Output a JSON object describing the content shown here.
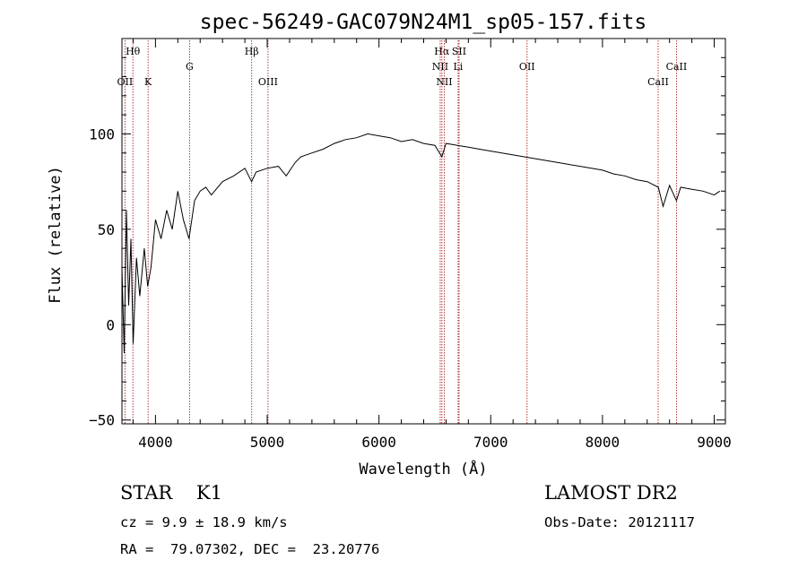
{
  "chart_data": {
    "type": "line",
    "title": "spec-56249-GAC079N24M1_sp05-157.fits",
    "xlabel": "Wavelength (Å)",
    "ylabel": "Flux (relative)",
    "xlim": [
      3700,
      9100
    ],
    "ylim": [
      -52,
      150
    ],
    "x_ticks": [
      4000,
      5000,
      6000,
      7000,
      8000,
      9000
    ],
    "x_tick_labels": [
      "4000",
      "5000",
      "6000",
      "7000",
      "8000",
      "9000"
    ],
    "y_ticks": [
      -50,
      0,
      50,
      100
    ],
    "y_tick_labels": [
      "−50",
      "0",
      "50",
      "100"
    ],
    "grid": false,
    "line_color": "#000000",
    "marker_color": "#aa2222",
    "series": [
      {
        "x": [
          3700,
          3720,
          3740,
          3760,
          3780,
          3800,
          3830,
          3860,
          3900,
          3930,
          3960,
          4000,
          4050,
          4100,
          4150,
          4200,
          4250,
          4300,
          4350,
          4400,
          4450,
          4500,
          4600,
          4700,
          4800,
          4860,
          4900,
          5000,
          5100,
          5170,
          5250,
          5300,
          5400,
          5500,
          5600,
          5700,
          5800,
          5900,
          6000,
          6100,
          6200,
          6300,
          6400,
          6500,
          6563,
          6600,
          6700,
          6800,
          6900,
          7000,
          7100,
          7200,
          7300,
          7400,
          7500,
          7600,
          7700,
          7800,
          7900,
          8000,
          8100,
          8200,
          8300,
          8400,
          8500,
          8542,
          8600,
          8662,
          8700,
          8800,
          8900,
          9000,
          9050
        ],
        "y": [
          30,
          -15,
          60,
          10,
          45,
          -10,
          35,
          15,
          40,
          20,
          30,
          55,
          45,
          60,
          50,
          70,
          55,
          45,
          65,
          70,
          72,
          68,
          75,
          78,
          82,
          75,
          80,
          82,
          83,
          78,
          85,
          88,
          90,
          92,
          95,
          97,
          98,
          100,
          99,
          98,
          96,
          97,
          95,
          94,
          88,
          95,
          94,
          93,
          92,
          91,
          90,
          89,
          88,
          87,
          86,
          85,
          84,
          83,
          82,
          81,
          79,
          78,
          76,
          75,
          72,
          62,
          73,
          65,
          72,
          71,
          70,
          68,
          70
        ]
      }
    ],
    "line_markers": [
      {
        "label": "Hθ",
        "x": 3798,
        "row": 1
      },
      {
        "label": "OII",
        "x": 3727,
        "row": 3
      },
      {
        "label": "K",
        "x": 3934,
        "row": 3
      },
      {
        "label": "G",
        "x": 4305,
        "row": 2
      },
      {
        "label": "Hβ",
        "x": 4861,
        "row": 1
      },
      {
        "label": "OIII",
        "x": 5007,
        "row": 3
      },
      {
        "label": "Hα",
        "x": 6563,
        "row": 1
      },
      {
        "label": "SII",
        "x": 6717,
        "row": 1
      },
      {
        "label": "NII",
        "x": 6548,
        "row": 2
      },
      {
        "label": "Li",
        "x": 6708,
        "row": 2
      },
      {
        "label": "NII",
        "x": 6584,
        "row": 3
      },
      {
        "label": "OII",
        "x": 7325,
        "row": 2
      },
      {
        "label": "CaII",
        "x": 8498,
        "row": 3
      },
      {
        "label": "CaII",
        "x": 8662,
        "row": 2
      }
    ]
  },
  "footer": {
    "classification": "STAR    K1",
    "redshift": "cz = 9.9 ± 18.9 km/s",
    "coordinates": "RA =  79.07302, DEC =  23.20776",
    "survey": "LAMOST DR2",
    "obs_date": "Obs-Date: 20121117"
  }
}
